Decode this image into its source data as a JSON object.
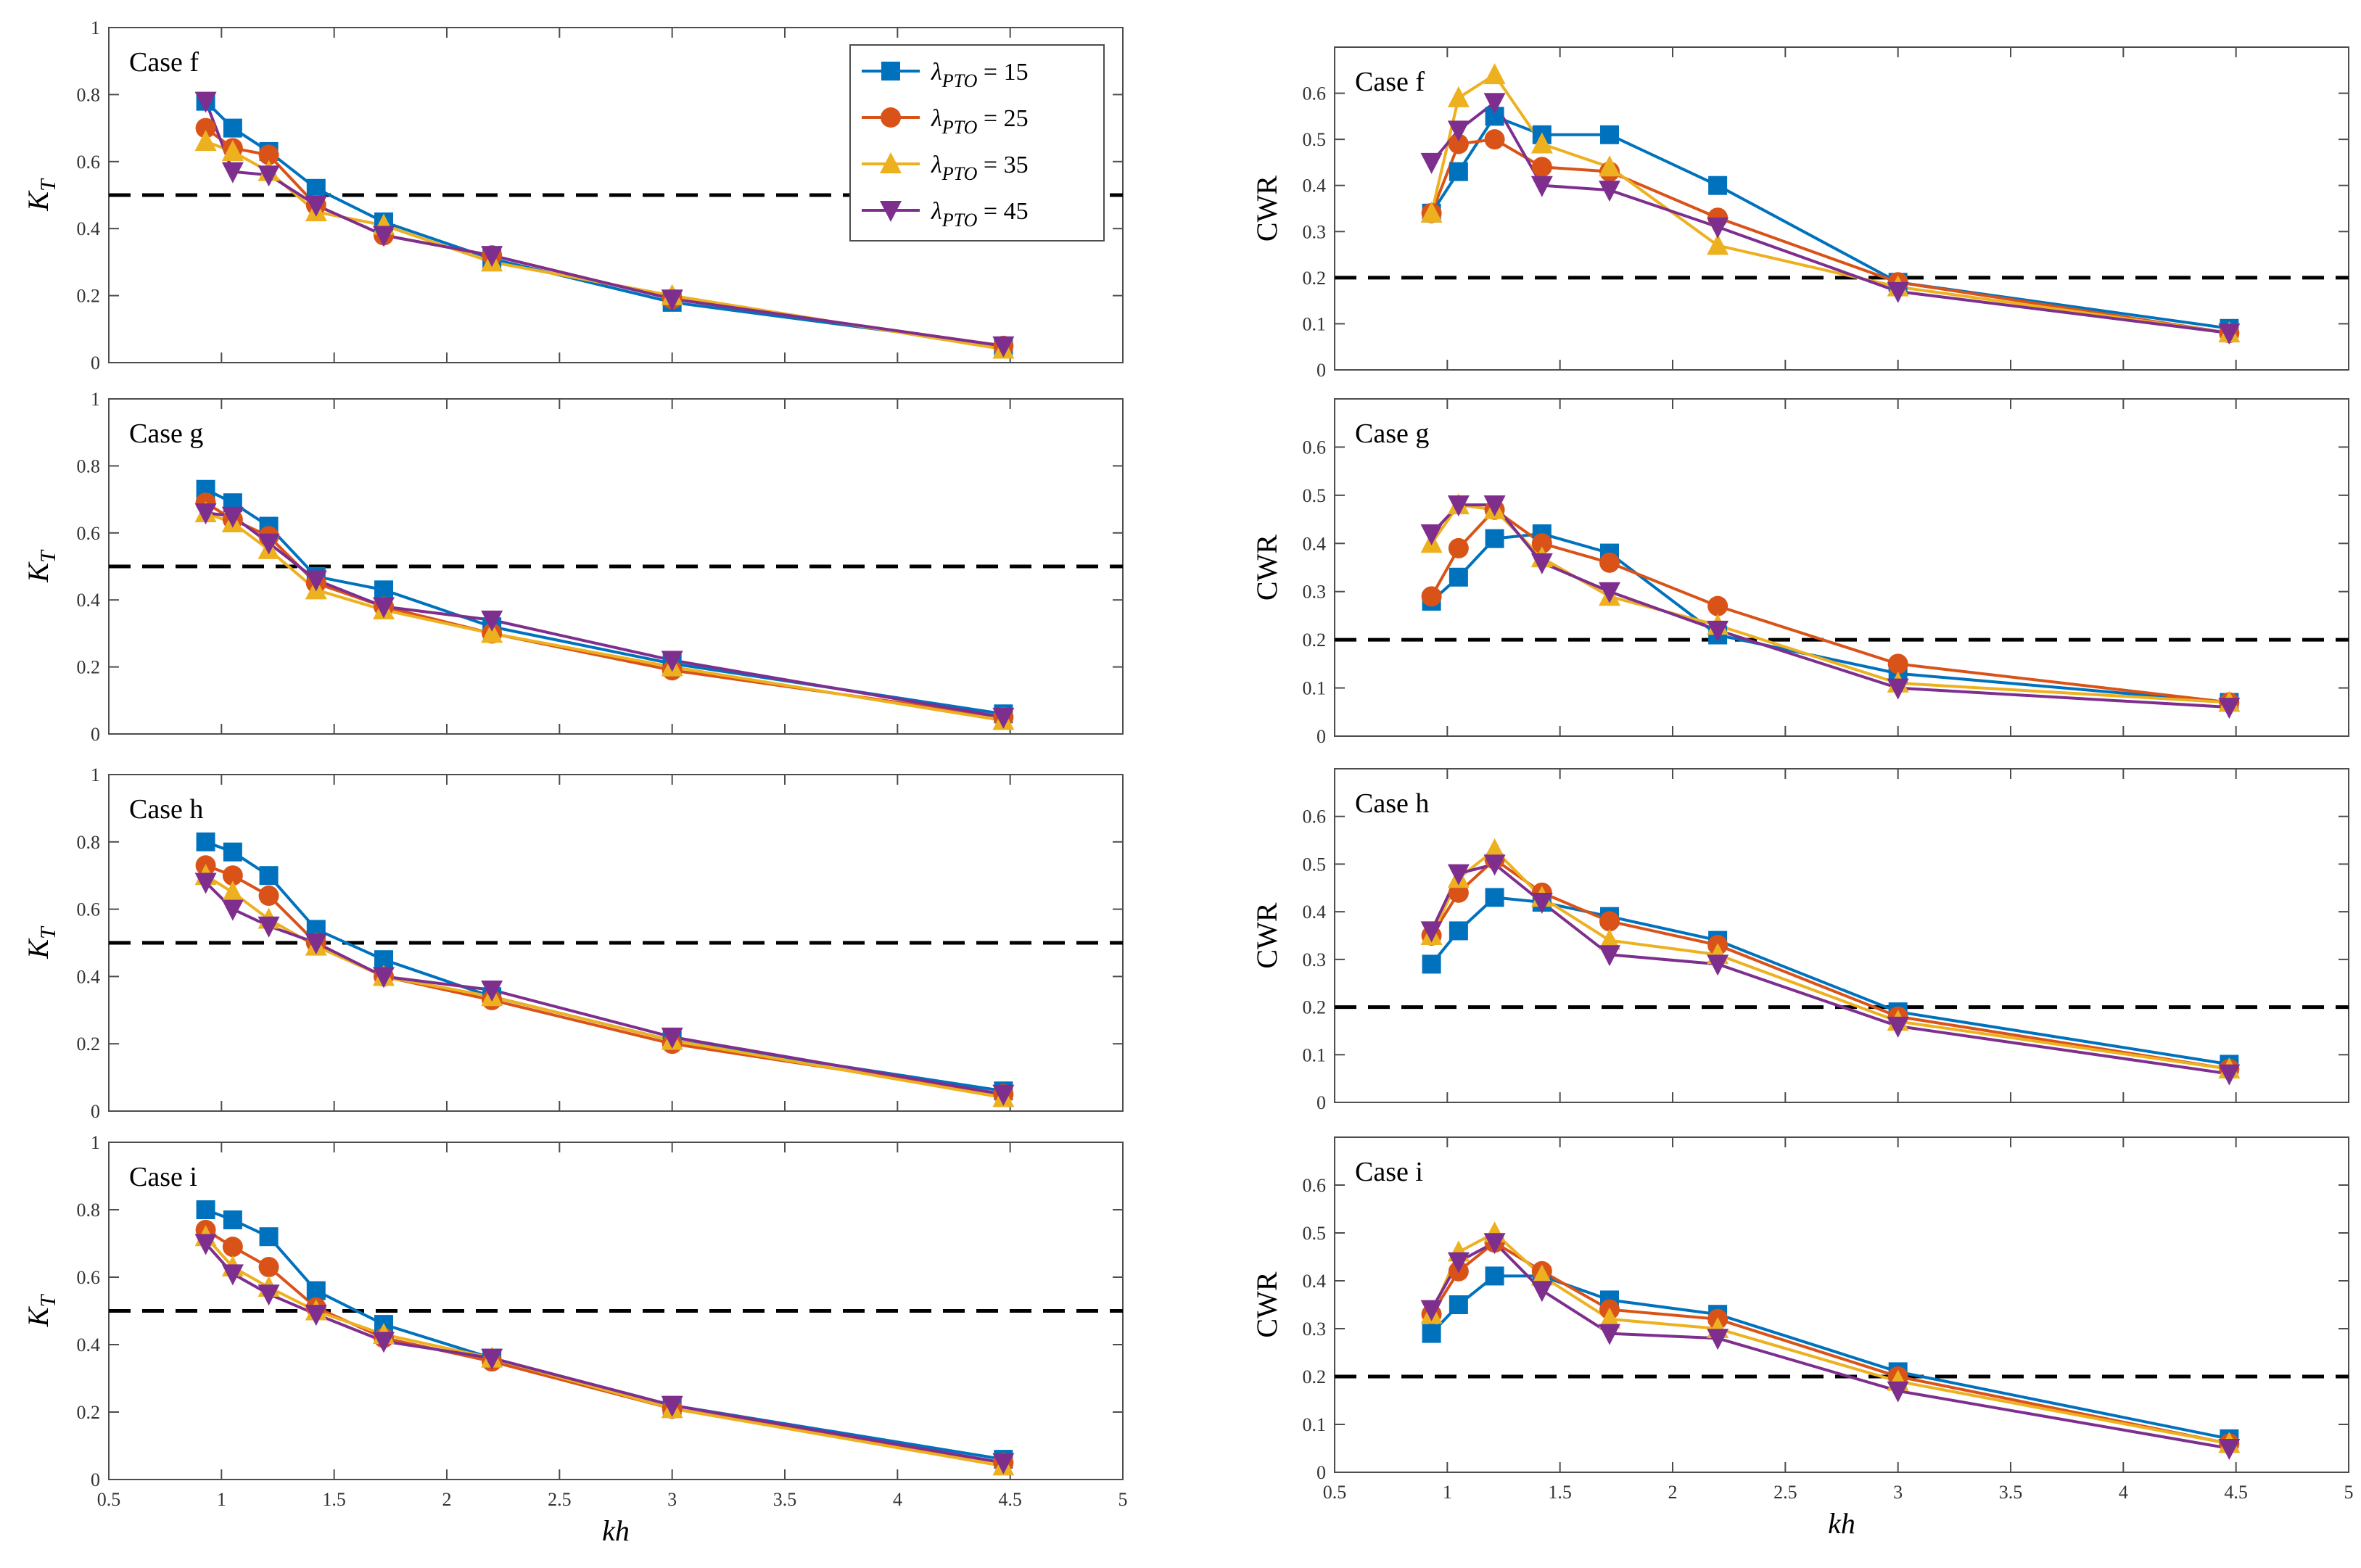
{
  "chart_data": [
    {
      "type": "line",
      "panel": "left-1",
      "case_label": "Case f",
      "ylabel": "K",
      "ylabel_sub": "T",
      "xlabel": "",
      "xlim": [
        0.5,
        5
      ],
      "ylim": [
        0,
        1
      ],
      "xticks": [
        "0.5",
        "1",
        "1.5",
        "2",
        "2.5",
        "3",
        "3.5",
        "4",
        "4.5",
        "5"
      ],
      "yticks": [
        "0",
        "0.2",
        "0.4",
        "0.6",
        "0.8",
        "1"
      ],
      "reference_y": 0.5,
      "x": [
        0.93,
        1.05,
        1.21,
        1.42,
        1.72,
        2.2,
        3.0,
        4.47
      ],
      "series": [
        {
          "name": "λPTO = 15",
          "values": [
            0.78,
            0.7,
            0.63,
            0.52,
            0.42,
            0.31,
            0.18,
            0.05
          ]
        },
        {
          "name": "λPTO = 25",
          "values": [
            0.7,
            0.64,
            0.62,
            0.47,
            0.38,
            0.32,
            0.19,
            0.05
          ]
        },
        {
          "name": "λPTO = 35",
          "values": [
            0.66,
            0.63,
            0.57,
            0.45,
            0.41,
            0.3,
            0.2,
            0.04
          ]
        },
        {
          "name": "λPTO = 45",
          "values": [
            0.78,
            0.57,
            0.56,
            0.47,
            0.38,
            0.32,
            0.19,
            0.05
          ]
        }
      ]
    },
    {
      "type": "line",
      "panel": "left-2",
      "case_label": "Case g",
      "ylabel": "K",
      "ylabel_sub": "T",
      "xlabel": "",
      "xlim": [
        0.5,
        5
      ],
      "ylim": [
        0,
        1
      ],
      "xticks": [
        "0.5",
        "1",
        "1.5",
        "2",
        "2.5",
        "3",
        "3.5",
        "4",
        "4.5",
        "5"
      ],
      "yticks": [
        "0",
        "0.2",
        "0.4",
        "0.6",
        "0.8",
        "1"
      ],
      "reference_y": 0.5,
      "x": [
        0.93,
        1.05,
        1.21,
        1.42,
        1.72,
        2.2,
        3.0,
        4.47
      ],
      "series": [
        {
          "name": "λPTO = 15",
          "values": [
            0.73,
            0.69,
            0.62,
            0.47,
            0.43,
            0.32,
            0.21,
            0.06
          ]
        },
        {
          "name": "λPTO = 25",
          "values": [
            0.69,
            0.64,
            0.59,
            0.45,
            0.38,
            0.3,
            0.19,
            0.05
          ]
        },
        {
          "name": "λPTO = 35",
          "values": [
            0.66,
            0.63,
            0.55,
            0.43,
            0.37,
            0.3,
            0.2,
            0.04
          ]
        },
        {
          "name": "λPTO = 45",
          "values": [
            0.66,
            0.65,
            0.57,
            0.46,
            0.38,
            0.34,
            0.22,
            0.05
          ]
        }
      ]
    },
    {
      "type": "line",
      "panel": "left-3",
      "case_label": "Case h",
      "ylabel": "K",
      "ylabel_sub": "T",
      "xlabel": "",
      "xlim": [
        0.5,
        5
      ],
      "ylim": [
        0,
        1
      ],
      "xticks": [
        "0.5",
        "1",
        "1.5",
        "2",
        "2.5",
        "3",
        "3.5",
        "4",
        "4.5",
        "5"
      ],
      "yticks": [
        "0",
        "0.2",
        "0.4",
        "0.6",
        "0.8",
        "1"
      ],
      "reference_y": 0.5,
      "x": [
        0.93,
        1.05,
        1.21,
        1.42,
        1.72,
        2.2,
        3.0,
        4.47
      ],
      "series": [
        {
          "name": "λPTO = 15",
          "values": [
            0.8,
            0.77,
            0.7,
            0.54,
            0.45,
            0.34,
            0.21,
            0.06
          ]
        },
        {
          "name": "λPTO = 25",
          "values": [
            0.73,
            0.7,
            0.64,
            0.5,
            0.4,
            0.33,
            0.2,
            0.05
          ]
        },
        {
          "name": "λPTO = 35",
          "values": [
            0.7,
            0.65,
            0.57,
            0.49,
            0.4,
            0.34,
            0.21,
            0.04
          ]
        },
        {
          "name": "λPTO = 45",
          "values": [
            0.68,
            0.6,
            0.55,
            0.5,
            0.4,
            0.36,
            0.22,
            0.05
          ]
        }
      ]
    },
    {
      "type": "line",
      "panel": "left-4",
      "case_label": "Case i",
      "ylabel": "K",
      "ylabel_sub": "T",
      "xlabel": "kh",
      "xlim": [
        0.5,
        5
      ],
      "ylim": [
        0,
        1
      ],
      "xticks": [
        "0.5",
        "1",
        "1.5",
        "2",
        "2.5",
        "3",
        "3.5",
        "4",
        "4.5",
        "5"
      ],
      "yticks": [
        "0",
        "0.2",
        "0.4",
        "0.6",
        "0.8",
        "1"
      ],
      "reference_y": 0.5,
      "x": [
        0.93,
        1.05,
        1.21,
        1.42,
        1.72,
        2.2,
        3.0,
        4.47
      ],
      "series": [
        {
          "name": "λPTO = 15",
          "values": [
            0.8,
            0.77,
            0.72,
            0.56,
            0.46,
            0.36,
            0.22,
            0.06
          ]
        },
        {
          "name": "λPTO = 25",
          "values": [
            0.74,
            0.69,
            0.63,
            0.51,
            0.42,
            0.35,
            0.21,
            0.05
          ]
        },
        {
          "name": "λPTO = 35",
          "values": [
            0.72,
            0.63,
            0.57,
            0.5,
            0.43,
            0.36,
            0.21,
            0.04
          ]
        },
        {
          "name": "λPTO = 45",
          "values": [
            0.7,
            0.61,
            0.55,
            0.49,
            0.41,
            0.36,
            0.22,
            0.05
          ]
        }
      ]
    },
    {
      "type": "line",
      "panel": "right-1",
      "case_label": "Case f",
      "ylabel": "CWR",
      "xlabel": "",
      "xlim": [
        0.5,
        5
      ],
      "ylim": [
        0,
        0.7
      ],
      "xticks": [
        "0.5",
        "1",
        "1.5",
        "2",
        "2.5",
        "3",
        "3.5",
        "4",
        "4.5",
        "5"
      ],
      "yticks": [
        "0",
        "0.1",
        "0.2",
        "0.3",
        "0.4",
        "0.5",
        "0.6"
      ],
      "reference_y": 0.2,
      "x": [
        0.93,
        1.05,
        1.21,
        1.42,
        1.72,
        2.2,
        3.0,
        4.47
      ],
      "series": [
        {
          "name": "λPTO = 15",
          "values": [
            0.34,
            0.43,
            0.55,
            0.51,
            0.51,
            0.4,
            0.19,
            0.09
          ]
        },
        {
          "name": "λPTO = 25",
          "values": [
            0.34,
            0.49,
            0.5,
            0.44,
            0.43,
            0.33,
            0.19,
            0.08
          ]
        },
        {
          "name": "λPTO = 35",
          "values": [
            0.34,
            0.59,
            0.64,
            0.49,
            0.44,
            0.27,
            0.18,
            0.08
          ]
        },
        {
          "name": "λPTO = 45",
          "values": [
            0.45,
            0.52,
            0.58,
            0.4,
            0.39,
            0.31,
            0.17,
            0.08
          ]
        }
      ]
    },
    {
      "type": "line",
      "panel": "right-2",
      "case_label": "Case g",
      "ylabel": "CWR",
      "xlabel": "",
      "xlim": [
        0.5,
        5
      ],
      "ylim": [
        0,
        0.7
      ],
      "xticks": [
        "0.5",
        "1",
        "1.5",
        "2",
        "2.5",
        "3",
        "3.5",
        "4",
        "4.5",
        "5"
      ],
      "yticks": [
        "0",
        "0.1",
        "0.2",
        "0.3",
        "0.4",
        "0.5",
        "0.6"
      ],
      "reference_y": 0.2,
      "x": [
        0.93,
        1.05,
        1.21,
        1.42,
        1.72,
        2.2,
        3.0,
        4.47
      ],
      "series": [
        {
          "name": "λPTO = 15",
          "values": [
            0.28,
            0.33,
            0.41,
            0.42,
            0.38,
            0.21,
            0.13,
            0.07
          ]
        },
        {
          "name": "λPTO = 25",
          "values": [
            0.29,
            0.39,
            0.47,
            0.4,
            0.36,
            0.27,
            0.15,
            0.07
          ]
        },
        {
          "name": "λPTO = 35",
          "values": [
            0.4,
            0.48,
            0.47,
            0.37,
            0.29,
            0.23,
            0.11,
            0.07
          ]
        },
        {
          "name": "λPTO = 45",
          "values": [
            0.42,
            0.48,
            0.48,
            0.36,
            0.3,
            0.22,
            0.1,
            0.06
          ]
        }
      ]
    },
    {
      "type": "line",
      "panel": "right-3",
      "case_label": "Case h",
      "ylabel": "CWR",
      "xlabel": "",
      "xlim": [
        0.5,
        5
      ],
      "ylim": [
        0,
        0.7
      ],
      "xticks": [
        "0.5",
        "1",
        "1.5",
        "2",
        "2.5",
        "3",
        "3.5",
        "4",
        "4.5",
        "5"
      ],
      "yticks": [
        "0",
        "0.1",
        "0.2",
        "0.3",
        "0.4",
        "0.5",
        "0.6"
      ],
      "reference_y": 0.2,
      "x": [
        0.93,
        1.05,
        1.21,
        1.42,
        1.72,
        2.2,
        3.0,
        4.47
      ],
      "series": [
        {
          "name": "λPTO = 15",
          "values": [
            0.29,
            0.36,
            0.43,
            0.42,
            0.39,
            0.34,
            0.19,
            0.08
          ]
        },
        {
          "name": "λPTO = 25",
          "values": [
            0.35,
            0.44,
            0.51,
            0.44,
            0.38,
            0.33,
            0.18,
            0.07
          ]
        },
        {
          "name": "λPTO = 35",
          "values": [
            0.35,
            0.47,
            0.53,
            0.43,
            0.34,
            0.31,
            0.17,
            0.07
          ]
        },
        {
          "name": "λPTO = 45",
          "values": [
            0.36,
            0.48,
            0.5,
            0.42,
            0.31,
            0.29,
            0.16,
            0.06
          ]
        }
      ]
    },
    {
      "type": "line",
      "panel": "right-4",
      "case_label": "Case i",
      "ylabel": "CWR",
      "xlabel": "kh",
      "xlim": [
        0.5,
        5
      ],
      "ylim": [
        0,
        0.7
      ],
      "xticks": [
        "0.5",
        "1",
        "1.5",
        "2",
        "2.5",
        "3",
        "3.5",
        "4",
        "4.5",
        "5"
      ],
      "yticks": [
        "0",
        "0.1",
        "0.2",
        "0.3",
        "0.4",
        "0.5",
        "0.6"
      ],
      "reference_y": 0.2,
      "x": [
        0.93,
        1.05,
        1.21,
        1.42,
        1.72,
        2.2,
        3.0,
        4.47
      ],
      "series": [
        {
          "name": "λPTO = 15",
          "values": [
            0.29,
            0.35,
            0.41,
            0.41,
            0.36,
            0.33,
            0.21,
            0.07
          ]
        },
        {
          "name": "λPTO = 25",
          "values": [
            0.33,
            0.42,
            0.48,
            0.42,
            0.34,
            0.32,
            0.2,
            0.06
          ]
        },
        {
          "name": "λPTO = 35",
          "values": [
            0.33,
            0.46,
            0.5,
            0.41,
            0.32,
            0.3,
            0.19,
            0.06
          ]
        },
        {
          "name": "λPTO = 45",
          "values": [
            0.34,
            0.44,
            0.48,
            0.38,
            0.29,
            0.28,
            0.17,
            0.05
          ]
        }
      ]
    }
  ],
  "legend": {
    "items": [
      {
        "symbol": "λ",
        "sub": "PTO",
        "suffix": " = 15",
        "color": "#0072BD",
        "marker": "square"
      },
      {
        "symbol": "λ",
        "sub": "PTO",
        "suffix": " = 25",
        "color": "#D95319",
        "marker": "circle"
      },
      {
        "symbol": "λ",
        "sub": "PTO",
        "suffix": " = 35",
        "color": "#EDB120",
        "marker": "triangle-up"
      },
      {
        "symbol": "λ",
        "sub": "PTO",
        "suffix": " = 45",
        "color": "#7E2F8E",
        "marker": "triangle-down"
      }
    ]
  }
}
